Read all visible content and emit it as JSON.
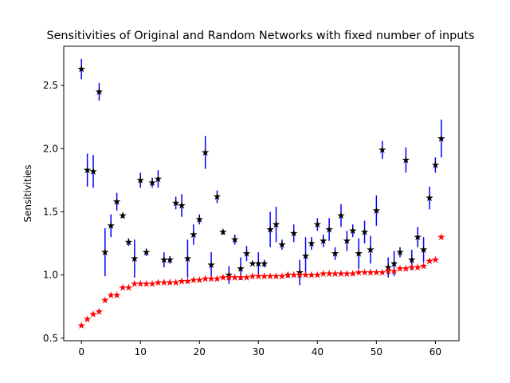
{
  "chart_data": {
    "type": "scatter",
    "title": "Sensitivities of Original and Random Networks with fixed number of inputs",
    "xlabel": "",
    "ylabel": "Sensitivities",
    "xlim": [
      -3,
      64
    ],
    "ylim": [
      0.48,
      2.81
    ],
    "xticks": [
      "0",
      "10",
      "20",
      "30",
      "40",
      "50",
      "60"
    ],
    "yticks": [
      "0.5",
      "1.0",
      "1.5",
      "2.0",
      "2.5"
    ],
    "grid": false,
    "legend": "none",
    "colors": {
      "original": "#000000",
      "error_bars": "#0000ff",
      "random": "#ff0000"
    },
    "series": [
      {
        "marker": "star",
        "x": [
          0,
          1,
          2,
          3,
          4,
          5,
          6,
          7,
          8,
          9,
          10,
          11,
          12,
          13,
          14,
          15,
          16,
          17,
          18,
          19,
          20,
          21,
          22,
          23,
          24,
          25,
          26,
          27,
          28,
          29,
          30,
          31,
          32,
          33,
          34,
          35,
          36,
          37,
          38,
          39,
          40,
          41,
          42,
          43,
          44,
          45,
          46,
          47,
          48,
          49,
          50,
          51,
          52,
          53,
          54,
          55,
          56,
          57,
          58,
          59,
          60,
          61
        ],
        "y": [
          2.63,
          1.83,
          1.82,
          2.45,
          1.18,
          1.39,
          1.58,
          1.47,
          1.26,
          1.13,
          1.75,
          1.18,
          1.73,
          1.76,
          1.12,
          1.12,
          1.57,
          1.55,
          1.13,
          1.32,
          1.44,
          1.97,
          1.08,
          1.62,
          1.34,
          1.0,
          1.28,
          1.05,
          1.17,
          1.09,
          1.09,
          1.09,
          1.36,
          1.4,
          1.24,
          1.0,
          1.33,
          1.02,
          1.15,
          1.25,
          1.4,
          1.27,
          1.36,
          1.17,
          1.47,
          1.27,
          1.35,
          1.17,
          1.34,
          1.2,
          1.51,
          1.99,
          1.06,
          1.09,
          1.18,
          1.91,
          1.12,
          1.3,
          1.2,
          1.61,
          1.87,
          2.08
        ],
        "error": [
          0.08,
          0.13,
          0.13,
          0.07,
          0.19,
          0.09,
          0.07,
          0.02,
          0.03,
          0.15,
          0.06,
          0.03,
          0.04,
          0.07,
          0.06,
          0.03,
          0.05,
          0.09,
          0.15,
          0.08,
          0.04,
          0.13,
          0.1,
          0.05,
          0.02,
          0.07,
          0.04,
          0.09,
          0.06,
          0.01,
          0.09,
          0.03,
          0.14,
          0.14,
          0.04,
          0.02,
          0.07,
          0.1,
          0.15,
          0.05,
          0.05,
          0.05,
          0.09,
          0.05,
          0.09,
          0.08,
          0.05,
          0.12,
          0.09,
          0.11,
          0.12,
          0.07,
          0.08,
          0.1,
          0.04,
          0.1,
          0.08,
          0.08,
          0.1,
          0.09,
          0.06,
          0.15
        ]
      },
      {
        "marker": "star",
        "x": [
          0,
          1,
          2,
          3,
          4,
          5,
          6,
          7,
          8,
          9,
          10,
          11,
          12,
          13,
          14,
          15,
          16,
          17,
          18,
          19,
          20,
          21,
          22,
          23,
          24,
          25,
          26,
          27,
          28,
          29,
          30,
          31,
          32,
          33,
          34,
          35,
          36,
          37,
          38,
          39,
          40,
          41,
          42,
          43,
          44,
          45,
          46,
          47,
          48,
          49,
          50,
          51,
          52,
          53,
          54,
          55,
          56,
          57,
          58,
          59,
          60,
          61
        ],
        "y": [
          0.6,
          0.65,
          0.69,
          0.71,
          0.8,
          0.84,
          0.84,
          0.9,
          0.9,
          0.93,
          0.93,
          0.93,
          0.93,
          0.94,
          0.94,
          0.94,
          0.94,
          0.95,
          0.95,
          0.96,
          0.96,
          0.97,
          0.97,
          0.97,
          0.98,
          0.98,
          0.98,
          0.98,
          0.98,
          0.99,
          0.99,
          0.99,
          0.99,
          0.99,
          0.99,
          1.0,
          1.0,
          1.0,
          1.0,
          1.0,
          1.0,
          1.01,
          1.01,
          1.01,
          1.01,
          1.01,
          1.01,
          1.02,
          1.02,
          1.02,
          1.02,
          1.02,
          1.03,
          1.03,
          1.05,
          1.05,
          1.06,
          1.06,
          1.07,
          1.11,
          1.12,
          1.3
        ]
      }
    ]
  }
}
